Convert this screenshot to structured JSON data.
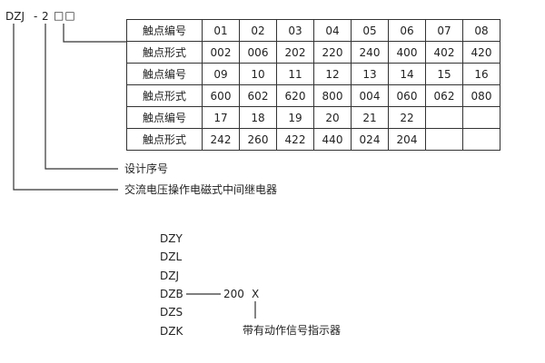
{
  "code": {
    "prefix": "DZJ",
    "dash": "-",
    "design": "2",
    "boxes": "□□"
  },
  "labels": {
    "design_no": "设计序号",
    "relay_type": "交流电压操作电磁式中间继电器"
  },
  "table": {
    "rows": [
      {
        "header": "触点编号",
        "cells": [
          "01",
          "02",
          "03",
          "04",
          "05",
          "06",
          "07",
          "08"
        ]
      },
      {
        "header": "触点形式",
        "cells": [
          "002",
          "006",
          "202",
          "220",
          "240",
          "400",
          "402",
          "420"
        ]
      },
      {
        "header": "触点编号",
        "cells": [
          "09",
          "10",
          "11",
          "12",
          "13",
          "14",
          "15",
          "16"
        ]
      },
      {
        "header": "触点形式",
        "cells": [
          "600",
          "602",
          "620",
          "800",
          "004",
          "060",
          "062",
          "080"
        ]
      },
      {
        "header": "触点编号",
        "cells": [
          "17",
          "18",
          "19",
          "20",
          "21",
          "22",
          "",
          ""
        ]
      },
      {
        "header": "触点形式",
        "cells": [
          "242",
          "260",
          "422",
          "440",
          "024",
          "204",
          "",
          ""
        ]
      }
    ]
  },
  "variants": {
    "models": [
      "DZY",
      "DZL",
      "DZJ",
      "DZB",
      "DZS",
      "DZK"
    ],
    "suffix": "200",
    "x": "X",
    "x_label": "带有动作信号指示器"
  }
}
